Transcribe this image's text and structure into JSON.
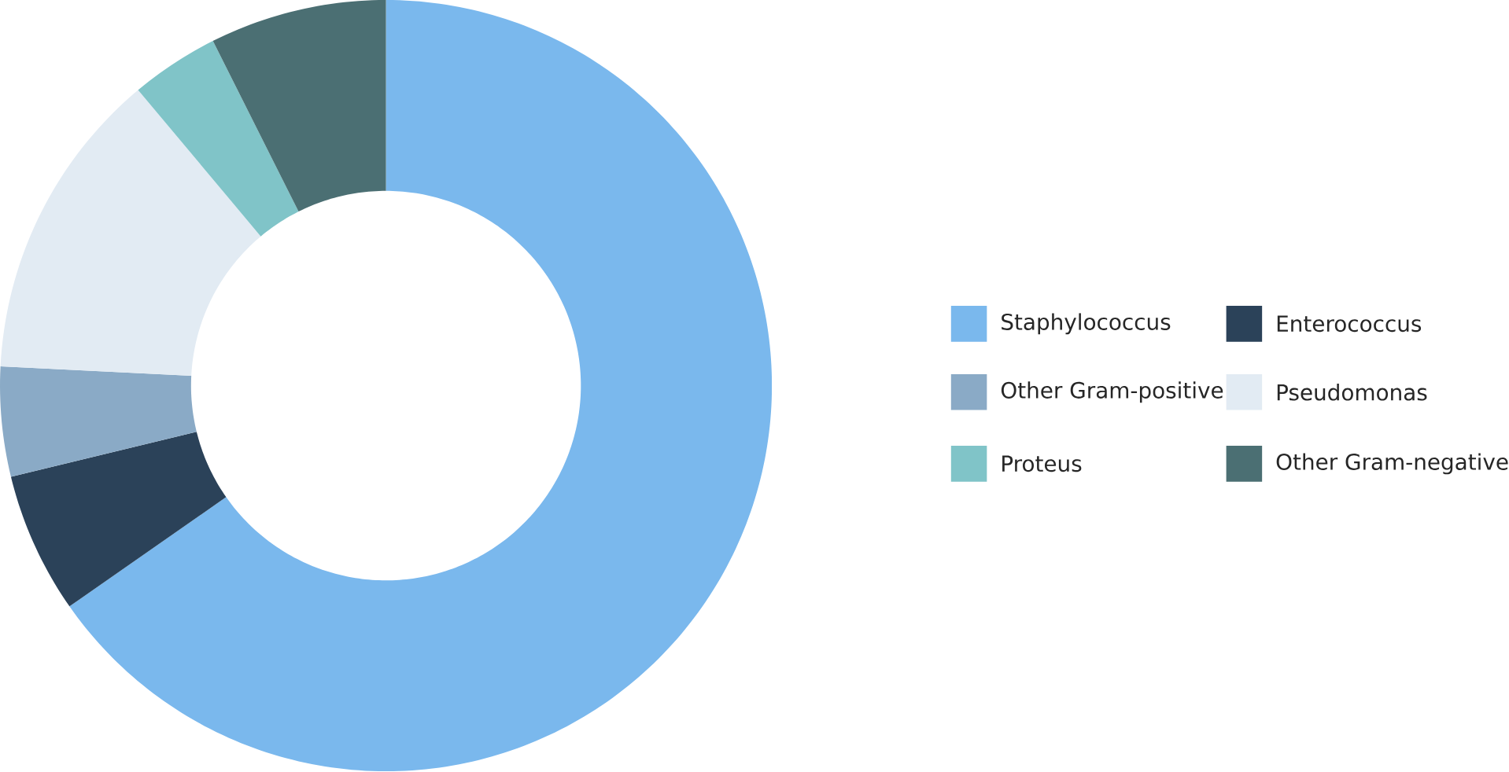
{
  "chart_data": {
    "type": "donut",
    "categories": [
      "Staphylococcus",
      "Enterococcus",
      "Other Gram-positive",
      "Pseudomonas",
      "Proteus",
      "Other Gram-negative"
    ],
    "values": [
      65.3,
      5.9,
      4.6,
      13.1,
      3.7,
      7.4
    ],
    "colors": [
      "#7ab8ed",
      "#2b4259",
      "#8aaac6",
      "#e2ebf3",
      "#80c4c8",
      "#4b6f73"
    ],
    "legend": "right"
  }
}
